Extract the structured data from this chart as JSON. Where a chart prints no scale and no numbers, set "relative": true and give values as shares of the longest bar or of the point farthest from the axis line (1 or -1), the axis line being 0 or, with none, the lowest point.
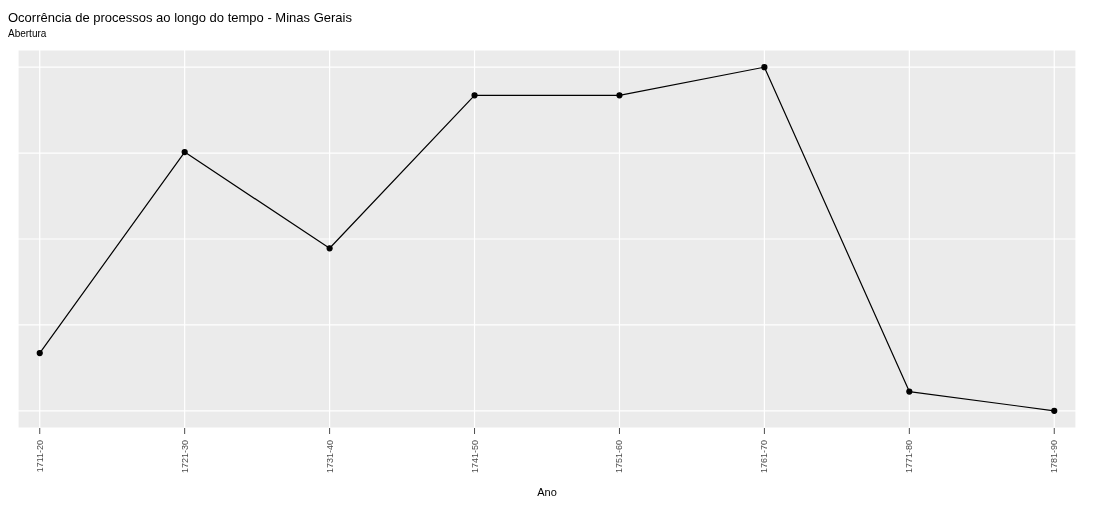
{
  "chart_data": {
    "type": "line",
    "title": "Ocorrência de processos ao longo do tempo - Minas Gerais",
    "subtitle": "Abertura",
    "xlabel": "Ano",
    "categories": [
      "1711-20",
      "1721-30",
      "1731-40",
      "1741-50",
      "1751-60",
      "1761-70",
      "1771-80",
      "1781-90"
    ],
    "series": [
      {
        "color": "#000000",
        "values": [
          0.168,
          0.753,
          0.473,
          0.918,
          0.918,
          1,
          0.056,
          0
        ]
      }
    ],
    "relative": true,
    "grid": true,
    "marker": "circle",
    "line_style": "solid"
  }
}
